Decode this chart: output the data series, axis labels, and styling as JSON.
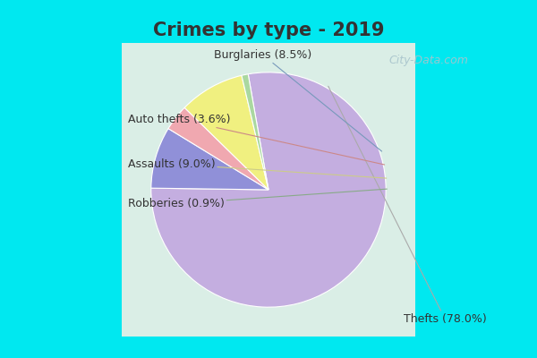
{
  "title": "Crimes by type - 2019",
  "slices": [
    {
      "label": "Thefts",
      "pct": 78.0,
      "color": "#c4aee0"
    },
    {
      "label": "Burglaries",
      "pct": 8.5,
      "color": "#9090d8"
    },
    {
      "label": "Auto thefts",
      "pct": 3.6,
      "color": "#f0a8b0"
    },
    {
      "label": "Assaults",
      "pct": 9.0,
      "color": "#f0f080"
    },
    {
      "label": "Robberies",
      "pct": 0.9,
      "color": "#aad8a0"
    }
  ],
  "bg_outer": "#00e8f0",
  "bg_inner_topleft": "#c8ece0",
  "bg_inner_botright": "#e8f0ec",
  "title_color": "#333333",
  "title_fontsize": 15,
  "label_fontsize": 9,
  "watermark": "City-Data.com",
  "watermark_color": "#a8c4cc"
}
